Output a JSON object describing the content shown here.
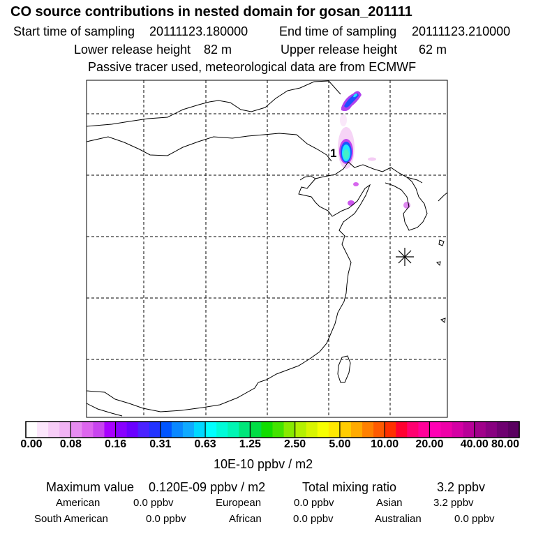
{
  "header": {
    "title": "CO  source contributions in nested domain for gosan_201111",
    "start_label": "Start time of sampling",
    "start_value": "20111123.180000",
    "end_label": "End time of sampling",
    "end_value": "20111123.210000",
    "lower_label": "Lower release height",
    "lower_value": "82 m",
    "upper_label": "Upper release height",
    "upper_value": "62 m",
    "tracer_note": "Passive tracer used, meteorological data are from ECMWF"
  },
  "map": {
    "release_marker_label": "1",
    "receptor_marker": "asterisk-icon"
  },
  "colorbar": {
    "tick_labels": [
      "0.00",
      "0.08",
      "0.16",
      "0.31",
      "0.63",
      "1.25",
      "2.50",
      "5.00",
      "10.00",
      "20.00",
      "40.00",
      "80.00"
    ],
    "units": "10E-10 ppbv / m2",
    "colors": [
      "#ffffff",
      "#fce6fc",
      "#f7cdf7",
      "#f1b3f4",
      "#e68cf0",
      "#dd66ee",
      "#c844ee",
      "#a800ff",
      "#8800ff",
      "#6a00ff",
      "#4b22ff",
      "#2233ff",
      "#0055ff",
      "#0a88ff",
      "#10aaff",
      "#00d8ff",
      "#00ffff",
      "#00fbd8",
      "#00f5b4",
      "#00e67a",
      "#00dd44",
      "#11dd00",
      "#44e300",
      "#88ea00",
      "#b4f000",
      "#d8f500",
      "#f7ff00",
      "#ffe800",
      "#ffcc00",
      "#ffaa00",
      "#ff8000",
      "#ff5a00",
      "#ff3000",
      "#ff0030",
      "#ff0070",
      "#ff0099",
      "#ff00b4",
      "#ee00a8",
      "#d400a4",
      "#b80098",
      "#a0008a",
      "#880080",
      "#6e0070",
      "#5a0060"
    ]
  },
  "summary": {
    "max_label": "Maximum value",
    "max_value": "0.120E-09 ppbv / m2",
    "total_label": "Total mixing ratio",
    "total_value": "3.2 ppbv",
    "regions": [
      {
        "name": "American",
        "value": "0.0 ppbv"
      },
      {
        "name": "European",
        "value": "0.0 ppbv"
      },
      {
        "name": "Asian",
        "value": "3.2 ppbv"
      },
      {
        "name": "South American",
        "value": "0.0 ppbv"
      },
      {
        "name": "African",
        "value": "0.0 ppbv"
      },
      {
        "name": "Australian",
        "value": "0.0 ppbv"
      }
    ]
  }
}
